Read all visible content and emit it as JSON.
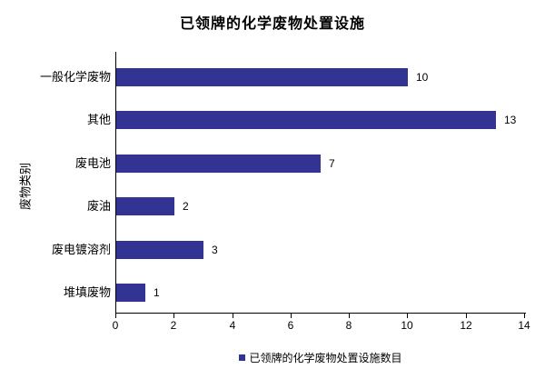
{
  "chart_data": {
    "type": "bar",
    "orientation": "horizontal",
    "title": "已领牌的化学废物处置设施",
    "ylabel": "废物类别",
    "xlabel": "",
    "categories": [
      "一般化学废物",
      "其他",
      "废电池",
      "废油",
      "废电镀溶剂",
      "堆填废物"
    ],
    "values": [
      10,
      13,
      7,
      2,
      3,
      1
    ],
    "xlim": [
      0,
      14
    ],
    "xticks": [
      0,
      2,
      4,
      6,
      8,
      10,
      12,
      14
    ],
    "grid": false,
    "legend": {
      "position": "bottom",
      "label": "已领牌的化学废物处置设施数目"
    }
  },
  "colors": {
    "bar": "#333394",
    "axis": "#000000",
    "text": "#000000",
    "background": "#ffffff"
  }
}
